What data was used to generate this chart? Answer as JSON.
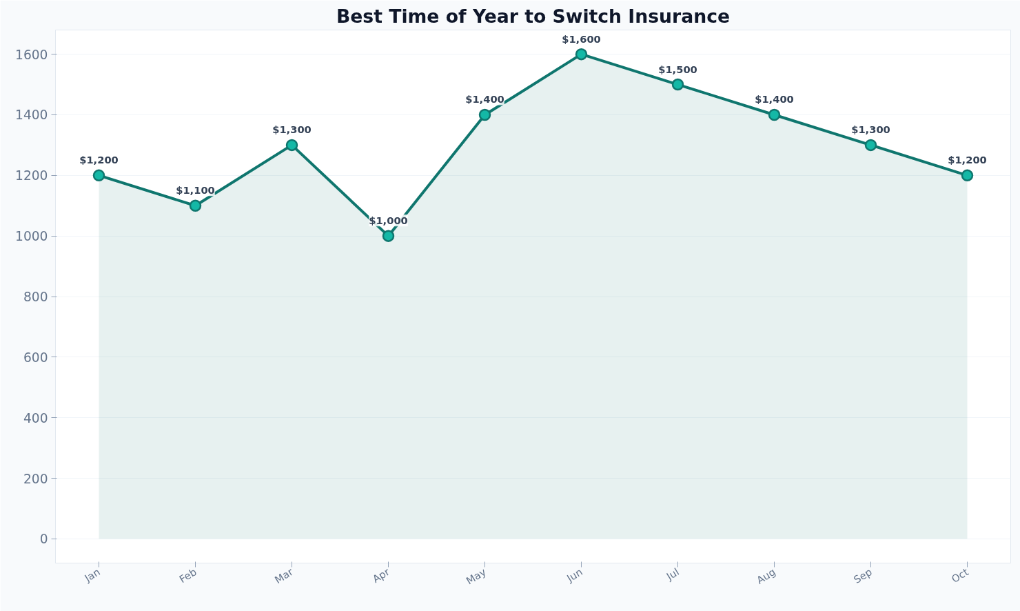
{
  "chart_data": {
    "type": "area",
    "title": "Best Time of Year to Switch Insurance",
    "categories": [
      "Jan",
      "Feb",
      "Mar",
      "Apr",
      "May",
      "Jun",
      "Jul",
      "Aug",
      "Sep",
      "Oct"
    ],
    "series": [
      {
        "color": "#0f766e",
        "values": [
          1200,
          1100,
          1300,
          1000,
          1400,
          1600,
          1500,
          1400,
          1300,
          1200
        ],
        "value_labels": [
          "$1,200",
          "$1,100",
          "$1,300",
          "$1,000",
          "$1,400",
          "$1,600",
          "$1,500",
          "$1,400",
          "$1,300",
          "$1,200"
        ]
      }
    ],
    "ylim": [
      -80,
      1680
    ],
    "yticks": [
      0,
      200,
      400,
      600,
      800,
      1000,
      1200,
      1400,
      1600
    ],
    "grid": "y",
    "marker": "circle",
    "line_style": "solid"
  }
}
